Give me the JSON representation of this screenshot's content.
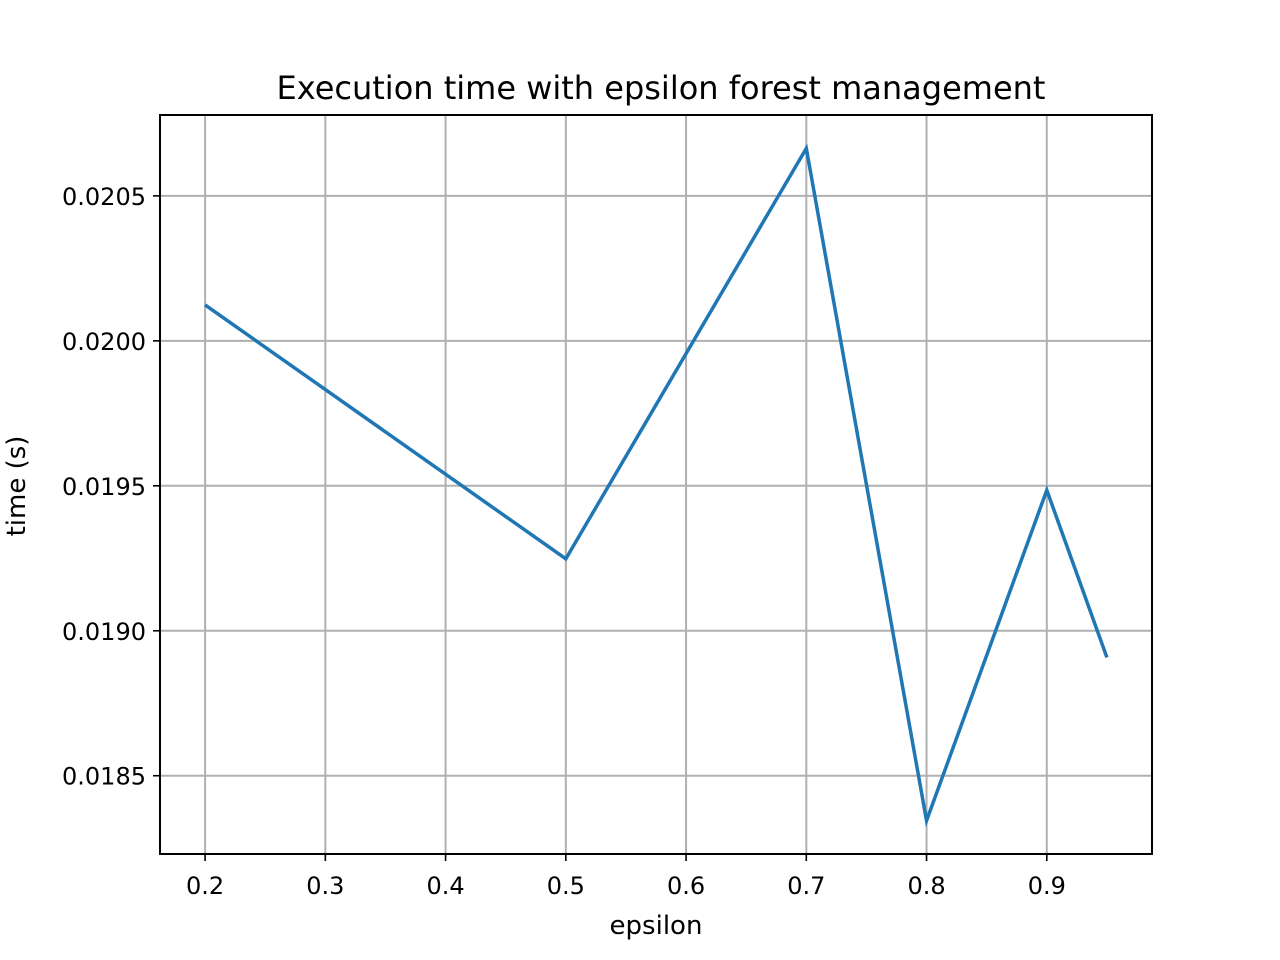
{
  "chart_data": {
    "type": "line",
    "title": "Execution time with epsilon forest management",
    "xlabel": "epsilon",
    "ylabel": "time (s)",
    "x": [
      0.2,
      0.5,
      0.7,
      0.8,
      0.9,
      0.95
    ],
    "series": [
      {
        "values": [
          0.020124,
          0.019248,
          0.020664,
          0.018345,
          0.019485,
          0.018908
        ]
      }
    ],
    "xlim": [
      0.1625,
      0.9875
    ],
    "ylim": [
      0.01823,
      0.020779
    ],
    "xticks": [
      0.2,
      0.3,
      0.4,
      0.5,
      0.6,
      0.7,
      0.8,
      0.9
    ],
    "xtick_labels": [
      "0.2",
      "0.3",
      "0.4",
      "0.5",
      "0.6",
      "0.7",
      "0.8",
      "0.9"
    ],
    "yticks": [
      0.0185,
      0.019,
      0.0195,
      0.02,
      0.0205
    ],
    "ytick_labels": [
      "0.0185",
      "0.0190",
      "0.0195",
      "0.0200",
      "0.0205"
    ],
    "grid": true,
    "legend": "none",
    "colors": {
      "series": "#1f77b4",
      "grid": "#b0b0b0",
      "frame": "#000000"
    }
  }
}
